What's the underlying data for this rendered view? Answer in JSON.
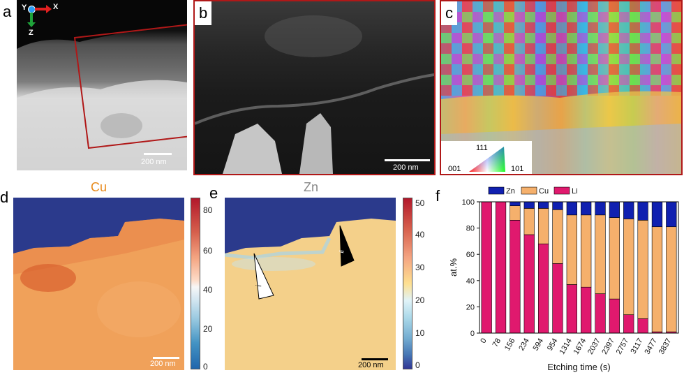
{
  "panels": {
    "a": {
      "label": "a",
      "scale": "200 nm",
      "axes": {
        "x": "X",
        "y": "Y",
        "z": "Z"
      }
    },
    "b": {
      "label": "b",
      "scale": "200 nm"
    },
    "c": {
      "label": "c",
      "ipf": {
        "top": "111",
        "left": "001",
        "right": "101"
      }
    },
    "d": {
      "label": "d",
      "title": "Cu",
      "title_color": "#e88a1a",
      "scale": "200 nm",
      "colorbar_ticks": [
        "80",
        "60",
        "40",
        "20",
        "0"
      ]
    },
    "e": {
      "label": "e",
      "title": "Zn",
      "title_color": "#888888",
      "scale": "200 nm",
      "colorbar_ticks": [
        "50",
        "40",
        "30",
        "20",
        "10",
        "0"
      ],
      "wedge_i": "i",
      "wedge_ii": "ii"
    },
    "f": {
      "label": "f"
    }
  },
  "chart_data": {
    "type": "bar",
    "stacked": true,
    "title": "",
    "xlabel": "Etching time (s)",
    "ylabel": "at.%",
    "ylim": [
      0,
      100
    ],
    "yticks": [
      0,
      20,
      40,
      60,
      80,
      100
    ],
    "legend_position": "top",
    "categories": [
      "0",
      "78",
      "156",
      "234",
      "594",
      "954",
      "1314",
      "1674",
      "2037",
      "2397",
      "2757",
      "3117",
      "3477",
      "3837"
    ],
    "series": [
      {
        "name": "Li",
        "color": "#e0196e",
        "values": [
          100,
          100,
          86,
          75,
          68,
          53,
          37,
          35,
          30,
          26,
          14,
          11,
          1,
          1
        ]
      },
      {
        "name": "Cu",
        "color": "#f5b06c",
        "values": [
          0,
          0,
          11,
          20,
          27,
          41,
          53,
          55,
          60,
          62,
          73,
          75,
          80,
          80
        ]
      },
      {
        "name": "Zn",
        "color": "#1020b0",
        "values": [
          0,
          0,
          3,
          5,
          5,
          6,
          10,
          10,
          10,
          12,
          13,
          14,
          19,
          19
        ]
      }
    ]
  }
}
